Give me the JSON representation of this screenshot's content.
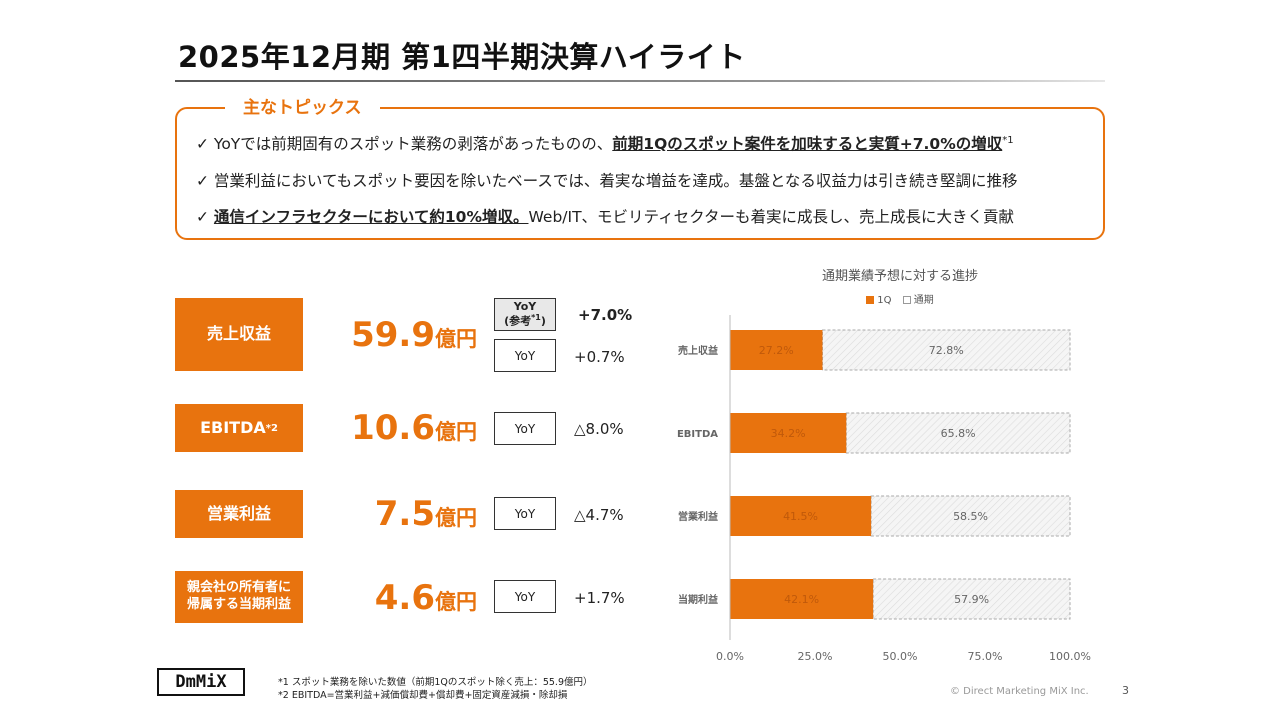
{
  "title": "2025年12月期 第1四半期決算ハイライト",
  "topics": {
    "label": "主なトピックス",
    "items": [
      {
        "pre": "✓ YoYでは前期固有のスポット業務の剥落があったものの、",
        "bold": "前期1Qのスポット案件を加味すると実質+7.0%の増収",
        "post": "",
        "sup": "*1"
      },
      {
        "pre": "✓ 営業利益においてもスポット要因を除いたベースでは、着実な増益を達成。基盤となる収益力は引き続き堅調に推移",
        "bold": "",
        "post": "",
        "sup": ""
      },
      {
        "pre": "✓ ",
        "bold": "通信インフラセクターにおいて約10%増収。",
        "post": "Web/IT、モビリティセクターも着実に成長し、売上成長に大きく貢献",
        "sup": ""
      }
    ]
  },
  "kpis": [
    {
      "label": "売上収益",
      "label_sup": "",
      "value": "59.9",
      "unit": "億円",
      "yoy_label": "YoY",
      "yoy": "+0.7%"
    },
    {
      "label": "EBITDA",
      "label_sup": "*2",
      "value": "10.6",
      "unit": "億円",
      "yoy_label": "YoY",
      "yoy": "△8.0%"
    },
    {
      "label": "営業利益",
      "label_sup": "",
      "value": "7.5",
      "unit": "億円",
      "yoy_label": "YoY",
      "yoy": "△4.7%"
    },
    {
      "label": "親会社の所有者に帰属する当期利益",
      "label_sup": "",
      "value": "4.6",
      "unit": "億円",
      "yoy_label": "YoY",
      "yoy": "+1.7%"
    }
  ],
  "yoy_reference": {
    "line1": "YoY",
    "line2": "(参考",
    "sup": "*1",
    "close": ")",
    "value": "+7.0%"
  },
  "chart_data": {
    "type": "bar",
    "orientation": "horizontal",
    "stacked": true,
    "title": "通期業績予想に対する進捗",
    "categories": [
      "売上収益",
      "EBITDA",
      "営業利益",
      "当期利益"
    ],
    "series": [
      {
        "name": "1Q",
        "values": [
          27.2,
          34.2,
          41.5,
          42.1
        ],
        "labels": [
          "27.2%",
          "34.2%",
          "41.5%",
          "42.1%"
        ],
        "color": "#E8730E"
      },
      {
        "name": "通期",
        "values": [
          72.8,
          65.8,
          58.5,
          57.9
        ],
        "labels": [
          "72.8%",
          "65.8%",
          "58.5%",
          "57.9%"
        ],
        "color": "#f2f2f2"
      }
    ],
    "xlim": [
      0,
      100
    ],
    "xticks": [
      "0.0%",
      "25.0%",
      "50.0%",
      "75.0%",
      "100.0%"
    ],
    "grid": false,
    "legend": "top"
  },
  "footnotes": [
    "*1 スポット業務を除いた数値（前期1Qのスポット除く売上：55.9億円）",
    "*2 EBITDA=営業利益+減価償却費+償却費+固定資産減損・除却損"
  ],
  "logo_text": "DmMiX",
  "copyright": "© Direct Marketing MiX Inc.",
  "page_number": "3",
  "colors": {
    "accent": "#E8730E",
    "remainder": "#f2f2f2"
  }
}
